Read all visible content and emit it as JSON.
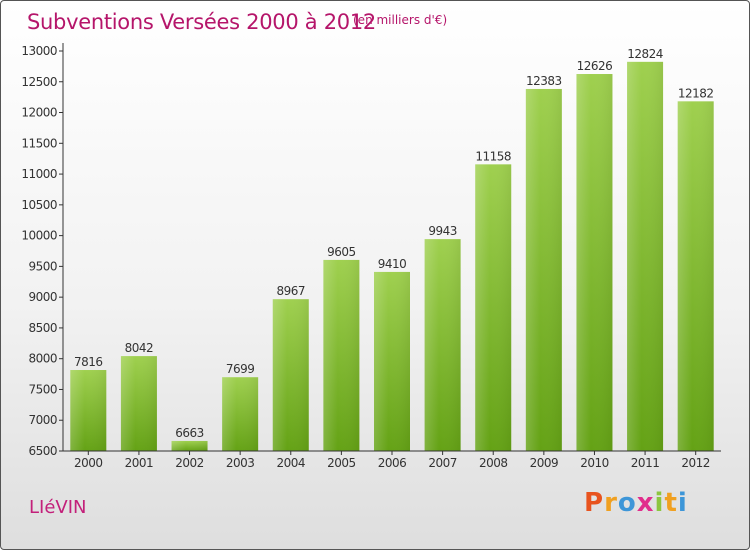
{
  "header": {
    "title": "Subventions Versées 2000 à 2012",
    "subtitle": "(en milliers d'€)"
  },
  "footer": {
    "city": "LIéVIN",
    "logo_letters": [
      "P",
      "r",
      "o",
      "x",
      "i",
      "t",
      "i"
    ],
    "logo_colors": [
      "#e8531e",
      "#f0a020",
      "#3d96d8",
      "#e12d8c",
      "#8cc63f",
      "#f0a020",
      "#3d96d8"
    ]
  },
  "colors": {
    "bar_top": "#9fd04f",
    "bar_bottom": "#64a215",
    "axis": "#333333",
    "grid": "#cccccc"
  },
  "chart_data": {
    "type": "bar",
    "title": "Subventions Versées 2000 à 2012",
    "categories": [
      "2000",
      "2001",
      "2002",
      "2003",
      "2004",
      "2005",
      "2006",
      "2007",
      "2008",
      "2009",
      "2010",
      "2011",
      "2012"
    ],
    "values": [
      7816,
      8042,
      6663,
      7699,
      8967,
      9605,
      9410,
      9943,
      11158,
      12383,
      12626,
      12824,
      12182
    ],
    "ylim": [
      6500,
      13000
    ],
    "yticks": [
      6500,
      7000,
      7500,
      8000,
      8500,
      9000,
      9500,
      10000,
      10500,
      11000,
      11500,
      12000,
      12500,
      13000
    ],
    "grid": false,
    "legend": "none"
  }
}
